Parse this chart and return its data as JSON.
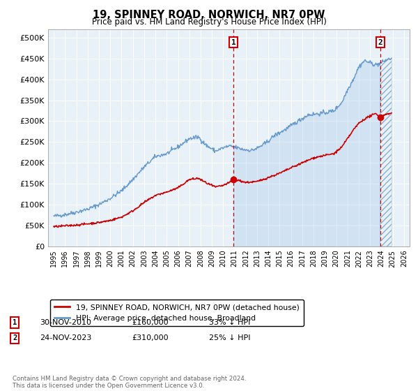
{
  "title": "19, SPINNEY ROAD, NORWICH, NR7 0PW",
  "subtitle": "Price paid vs. HM Land Registry's House Price Index (HPI)",
  "hpi_color": "#6699cc",
  "property_color": "#cc0000",
  "dashed_line_color": "#cc0000",
  "fill_color": "#d0e4f5",
  "plot_bg_color": "#e8f0f8",
  "ylim_min": 0,
  "ylim_max": 520000,
  "yticks": [
    0,
    50000,
    100000,
    150000,
    200000,
    250000,
    300000,
    350000,
    400000,
    450000,
    500000
  ],
  "ytick_labels": [
    "£0",
    "£50K",
    "£100K",
    "£150K",
    "£200K",
    "£250K",
    "£300K",
    "£350K",
    "£400K",
    "£450K",
    "£500K"
  ],
  "xlabel_years": [
    "1995",
    "1996",
    "1997",
    "1998",
    "1999",
    "2000",
    "2001",
    "2002",
    "2003",
    "2004",
    "2005",
    "2006",
    "2007",
    "2008",
    "2009",
    "2010",
    "2011",
    "2012",
    "2013",
    "2014",
    "2015",
    "2016",
    "2017",
    "2018",
    "2019",
    "2020",
    "2021",
    "2022",
    "2023",
    "2024",
    "2025",
    "2026"
  ],
  "sale1_date": 2010.92,
  "sale1_price": 160000,
  "sale1_label": "1",
  "sale2_date": 2023.9,
  "sale2_price": 310000,
  "sale2_label": "2",
  "legend_property": "19, SPINNEY ROAD, NORWICH, NR7 0PW (detached house)",
  "legend_hpi": "HPI: Average price, detached house, Broadland",
  "note1_label": "1",
  "note1_date": "30-NOV-2010",
  "note1_price": "£160,000",
  "note1_hpi": "33% ↓ HPI",
  "note2_label": "2",
  "note2_date": "24-NOV-2023",
  "note2_price": "£310,000",
  "note2_hpi": "25% ↓ HPI",
  "footer": "Contains HM Land Registry data © Crown copyright and database right 2024.\nThis data is licensed under the Open Government Licence v3.0."
}
